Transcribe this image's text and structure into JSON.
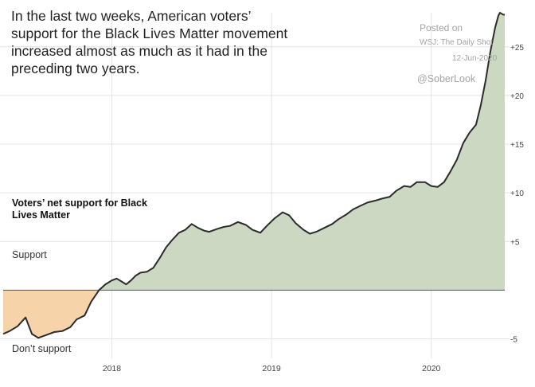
{
  "headline": "In the last two weeks, American voters’ support for the Black Lives Matter movement increased almost as much as it had in the preceding two years.",
  "credit": {
    "line1": "Posted on",
    "line2": "WSJ: The Daily Shot",
    "line3": "12-Jun-2020",
    "line4": "@SoberLook"
  },
  "colors": {
    "support_fill": "#ccd8c2",
    "oppose_fill": "#f7d3a9",
    "line": "#2b2b2b",
    "grid": "#e4e4e4",
    "zero": "#555555"
  },
  "chart_data": {
    "type": "area",
    "title": "Voters’ net support for Black Lives Matter",
    "ylabel_positive": "Support",
    "ylabel_negative": "Don’t support",
    "ylim": [
      -7,
      28.5
    ],
    "xlim": [
      2017.32,
      2020.46
    ],
    "y_ticks": [
      -5,
      5,
      10,
      15,
      20,
      25
    ],
    "y_tick_labels": [
      "-5",
      "+5",
      "+10",
      "+15",
      "+20",
      "+25"
    ],
    "x_ticks": [
      2018,
      2019,
      2020
    ],
    "x_tick_labels": [
      "2018",
      "2019",
      "2020"
    ],
    "grid": "horizontal and vertical",
    "series": [
      {
        "x": [
          2017.32,
          2017.36,
          2017.41,
          2017.46,
          2017.5,
          2017.54,
          2017.59,
          2017.64,
          2017.69,
          2017.74,
          2017.78,
          2017.83,
          2017.87,
          2017.92,
          2017.96,
          2018.0,
          2018.03,
          2018.06,
          2018.09,
          2018.12,
          2018.15,
          2018.18,
          2018.22,
          2018.26,
          2018.3,
          2018.34,
          2018.38,
          2018.42,
          2018.46,
          2018.5,
          2018.54,
          2018.58,
          2018.61,
          2018.66,
          2018.7,
          2018.74,
          2018.79,
          2018.84,
          2018.88,
          2018.93,
          2018.97,
          2019.02,
          2019.07,
          2019.11,
          2019.15,
          2019.2,
          2019.24,
          2019.28,
          2019.33,
          2019.38,
          2019.42,
          2019.47,
          2019.51,
          2019.56,
          2019.6,
          2019.65,
          2019.69,
          2019.74,
          2019.78,
          2019.83,
          2019.87,
          2019.91,
          2019.96,
          2020.0,
          2020.04,
          2020.08,
          2020.12,
          2020.16,
          2020.2,
          2020.24,
          2020.28,
          2020.31,
          2020.34,
          2020.37,
          2020.4,
          2020.42,
          2020.43,
          2020.44,
          2020.45,
          2020.46
        ],
        "y": [
          -4.5,
          -4.2,
          -3.7,
          -2.8,
          -4.5,
          -4.9,
          -4.6,
          -4.3,
          -4.2,
          -3.8,
          -3.0,
          -2.6,
          -1.2,
          0.0,
          0.6,
          1.0,
          1.2,
          0.9,
          0.6,
          1.0,
          1.5,
          1.8,
          1.9,
          2.3,
          3.3,
          4.4,
          5.2,
          5.9,
          6.2,
          6.8,
          6.4,
          6.1,
          6.0,
          6.3,
          6.5,
          6.6,
          7.0,
          6.7,
          6.2,
          5.9,
          6.6,
          7.4,
          8.0,
          7.7,
          6.9,
          6.2,
          5.8,
          6.0,
          6.4,
          6.8,
          7.3,
          7.8,
          8.3,
          8.7,
          9.0,
          9.2,
          9.4,
          9.6,
          10.2,
          10.7,
          10.6,
          11.1,
          11.1,
          10.7,
          10.6,
          11.1,
          12.2,
          13.4,
          15.1,
          16.2,
          17.0,
          19.0,
          21.5,
          24.5,
          27.0,
          28.2,
          28.5,
          28.4,
          28.3,
          28.3
        ]
      }
    ]
  }
}
